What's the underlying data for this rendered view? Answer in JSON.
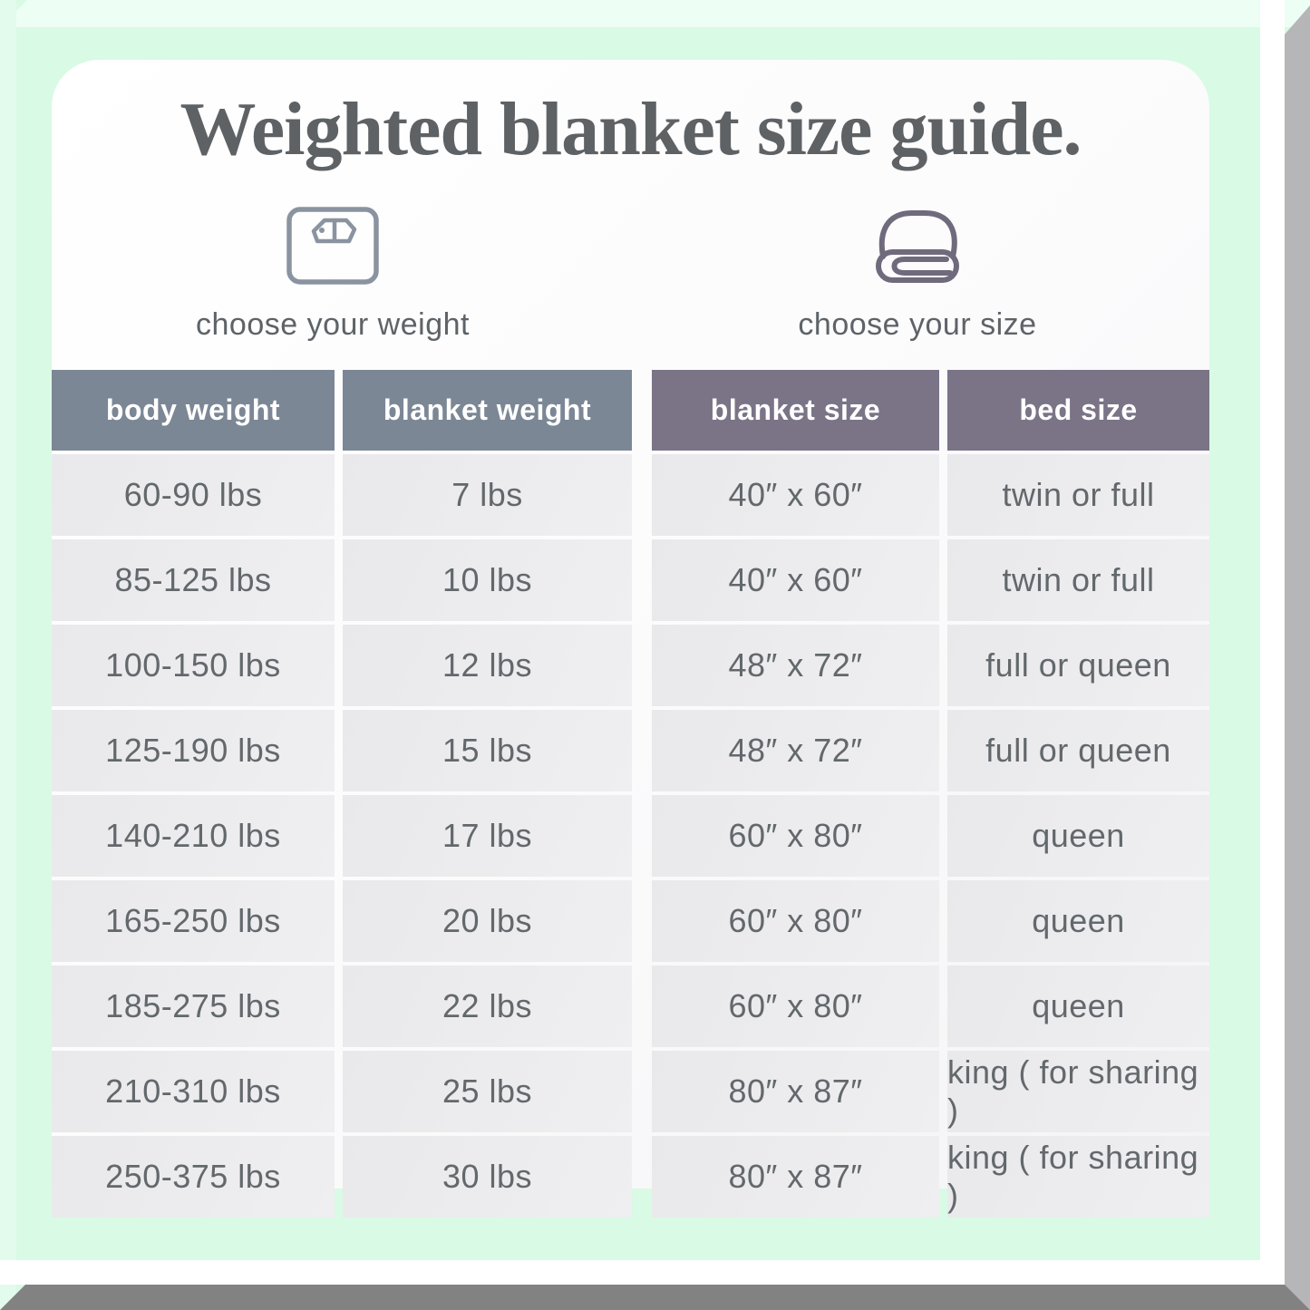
{
  "title": "Weighted blanket size guide.",
  "choosers": {
    "weight": {
      "label": "choose your weight",
      "icon": "scale-icon"
    },
    "size": {
      "label": "choose your size",
      "icon": "blanket-icon"
    }
  },
  "weight_table": {
    "headers": [
      "body weight",
      "blanket weight"
    ],
    "rows": [
      [
        "60-90 lbs",
        "7 lbs"
      ],
      [
        "85-125 lbs",
        "10 lbs"
      ],
      [
        "100-150 lbs",
        "12 lbs"
      ],
      [
        "125-190 lbs",
        "15 lbs"
      ],
      [
        "140-210 lbs",
        "17 lbs"
      ],
      [
        "165-250 lbs",
        "20 lbs"
      ],
      [
        "185-275 lbs",
        "22 lbs"
      ],
      [
        "210-310 lbs",
        "25 lbs"
      ],
      [
        "250-375 lbs",
        "30 lbs"
      ]
    ]
  },
  "size_table": {
    "headers": [
      "blanket size",
      "bed size"
    ],
    "rows": [
      [
        "40″ x 60″",
        "twin or full"
      ],
      [
        "40″ x 60″",
        "twin or full"
      ],
      [
        "48″ x 72″",
        "full or queen"
      ],
      [
        "48″ x 72″",
        "full or queen"
      ],
      [
        "60″ x 80″",
        "queen"
      ],
      [
        "60″ x 80″",
        "queen"
      ],
      [
        "60″ x 80″",
        "queen"
      ],
      [
        "80″ x 87″",
        "king ( for sharing )"
      ],
      [
        "80″ x 87″",
        "king ( for sharing )"
      ]
    ]
  },
  "colors": {
    "background_mint": "#d9fae5",
    "frame_top": "#edfef4",
    "frame_left": "#e3fbec",
    "frame_right": "#b6b6b8",
    "frame_bottom": "#828282",
    "card": "#fbfbfc",
    "weight_header": "#7c8795",
    "size_header": "#7b7487",
    "row_bg": "#ebebed",
    "row_text": "#63686c",
    "header_text": "#ffffff",
    "title_text": "#5e6265",
    "label_text": "#5d6368",
    "icon_scale": "#8a93a0",
    "icon_blanket": "#6f6a7c"
  }
}
